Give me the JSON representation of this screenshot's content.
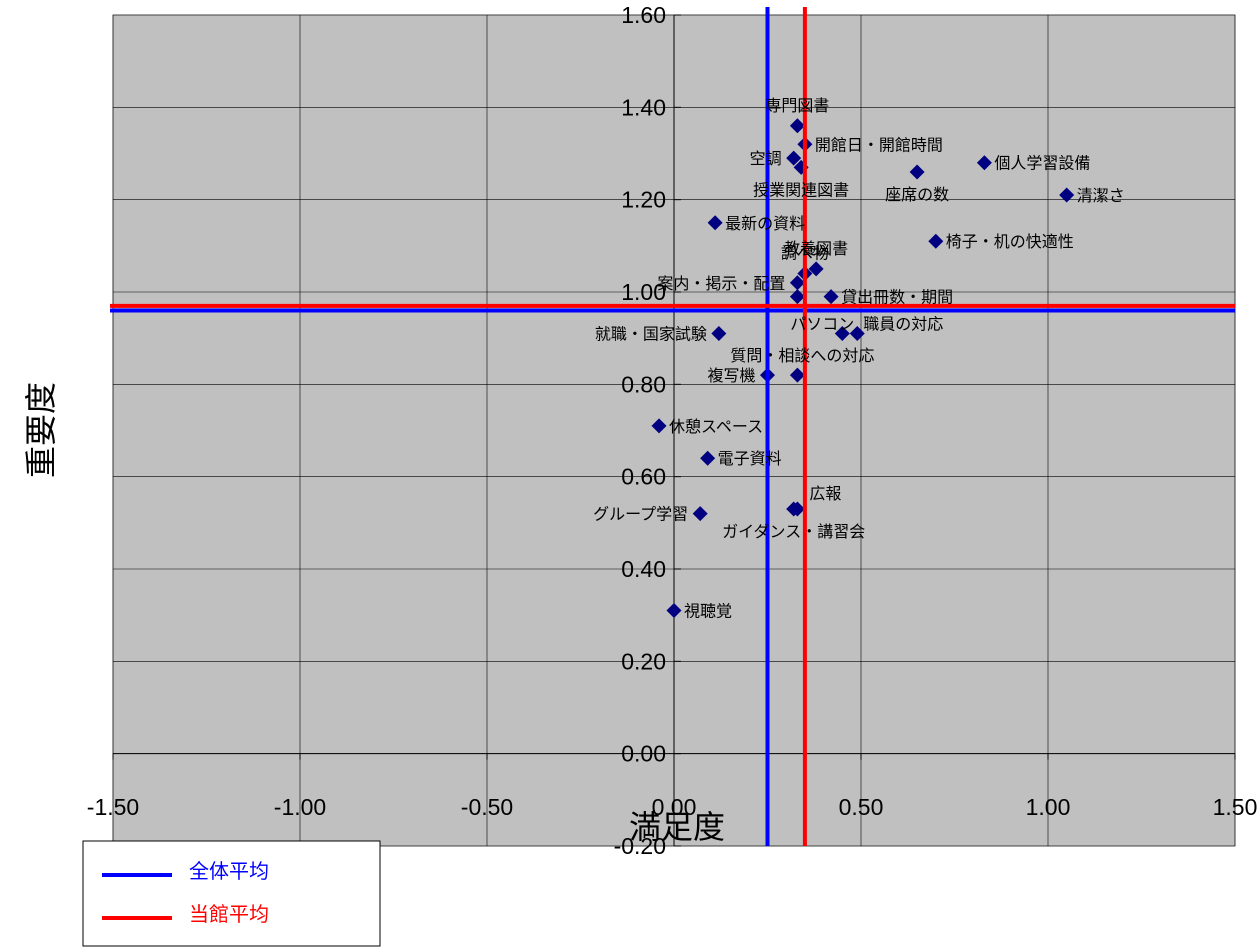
{
  "chart_data": {
    "type": "scatter",
    "title": "",
    "xlabel": "満足度",
    "ylabel": "重要度",
    "xlim": [
      -1.5,
      1.5
    ],
    "ylim": [
      -0.2,
      1.6
    ],
    "x_ticks": [
      "-1.50",
      "-1.00",
      "-0.50",
      "0.00",
      "0.50",
      "1.00",
      "1.50"
    ],
    "y_ticks": [
      "1.60",
      "1.40",
      "1.20",
      "1.00",
      "0.80",
      "0.60",
      "0.40",
      "0.20",
      "0.00",
      "-0.20"
    ],
    "grid": true,
    "marker_color": "#000080",
    "plot_background": "#c0c0c0",
    "points": [
      {
        "label": "専門図書",
        "x": 0.33,
        "y": 1.36
      },
      {
        "label": "開館日・開館時間",
        "x": 0.35,
        "y": 1.32
      },
      {
        "label": "空調",
        "x": 0.32,
        "y": 1.29
      },
      {
        "label": "授業関連図書",
        "x": 0.34,
        "y": 1.27
      },
      {
        "label": "個人学習設備",
        "x": 0.83,
        "y": 1.28
      },
      {
        "label": "座席の数",
        "x": 0.65,
        "y": 1.26
      },
      {
        "label": "清潔さ",
        "x": 1.05,
        "y": 1.21
      },
      {
        "label": "最新の資料",
        "x": 0.11,
        "y": 1.15
      },
      {
        "label": "椅子・机の快適性",
        "x": 0.7,
        "y": 1.11
      },
      {
        "label": "教養図書",
        "x": 0.38,
        "y": 1.05
      },
      {
        "label": "調べ物",
        "x": 0.35,
        "y": 1.04
      },
      {
        "label": "案内・掲示・配置",
        "x": 0.33,
        "y": 1.02
      },
      {
        "label": "",
        "x": 0.33,
        "y": 0.99
      },
      {
        "label": "貸出冊数・期間",
        "x": 0.42,
        "y": 0.99
      },
      {
        "label": "パソコン",
        "x": 0.45,
        "y": 0.91
      },
      {
        "label": "職員の対応",
        "x": 0.49,
        "y": 0.91
      },
      {
        "label": "就職・国家試験",
        "x": 0.12,
        "y": 0.91
      },
      {
        "label": "質問・相談への対応",
        "x": 0.33,
        "y": 0.82
      },
      {
        "label": "複写機",
        "x": 0.25,
        "y": 0.82
      },
      {
        "label": "休憩スペース",
        "x": -0.04,
        "y": 0.71
      },
      {
        "label": "電子資料",
        "x": 0.09,
        "y": 0.64
      },
      {
        "label": "広報",
        "x": 0.33,
        "y": 0.53
      },
      {
        "label": "グループ学習",
        "x": 0.07,
        "y": 0.52
      },
      {
        "label": "ガイダンス・講習会",
        "x": 0.32,
        "y": 0.53
      },
      {
        "label": "視聴覚",
        "x": 0.0,
        "y": 0.31
      }
    ],
    "reference_lines": [
      {
        "name": "全体平均",
        "color": "#0000ff",
        "x": 0.25,
        "y": 0.96
      },
      {
        "name": "当館平均",
        "color": "#ff0000",
        "x": 0.35,
        "y": 0.97
      }
    ],
    "legend": {
      "placement": "bottom-left",
      "entries": [
        "全体平均",
        "当館平均"
      ]
    }
  }
}
